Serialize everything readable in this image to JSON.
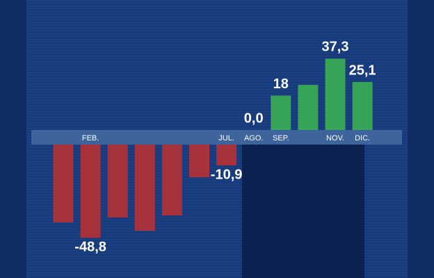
{
  "chart_data": {
    "type": "bar",
    "categories": [
      null,
      "FEB.",
      null,
      null,
      null,
      null,
      "JUL.",
      "AGO.",
      "SEP.",
      null,
      "NOV.",
      "DIC."
    ],
    "values": [
      -40.7,
      -48.8,
      -38.2,
      -45.1,
      -37.1,
      -17.1,
      -10.9,
      0.0,
      18,
      23.6,
      37.3,
      25.1
    ],
    "value_labels": [
      null,
      "-48,8",
      null,
      null,
      null,
      null,
      "-10,9",
      "0,0",
      "18",
      null,
      "37,3",
      "25,1"
    ],
    "colors": {
      "negative": "#a8323b",
      "positive": "#37a356"
    }
  }
}
